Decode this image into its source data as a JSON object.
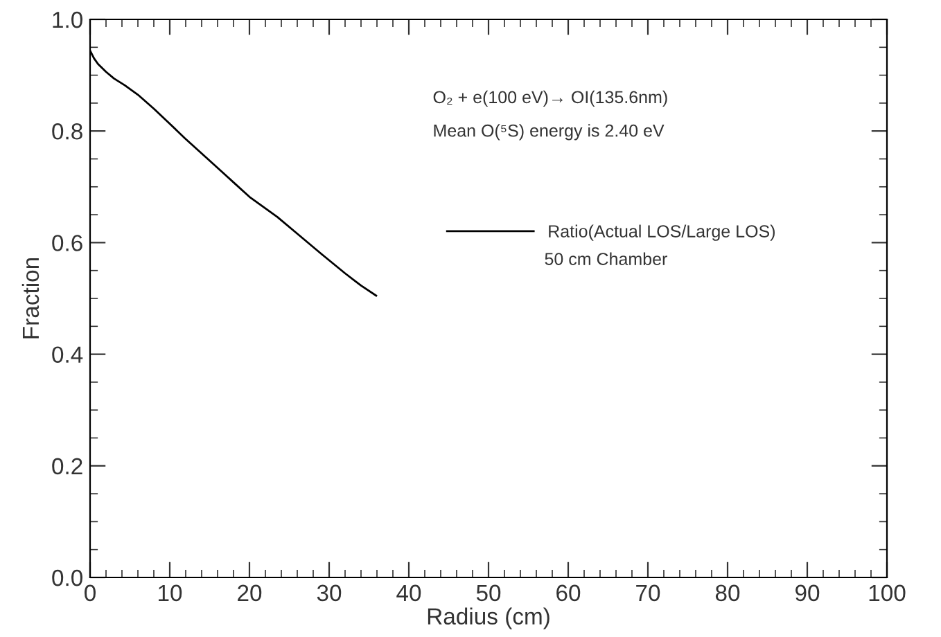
{
  "chart_data": {
    "type": "line",
    "xlabel": "Radius (cm)",
    "ylabel": "Fraction",
    "series": [
      {
        "name": "Ratio(Actual LOS/Large LOS)",
        "color": "#000000",
        "x": [
          0,
          0.5,
          1,
          2,
          3,
          4.35,
          6,
          8,
          10,
          11.9,
          15,
          18,
          20,
          23.5,
          26,
          29,
          32,
          34,
          35.9
        ],
        "values": [
          0.944,
          0.93,
          0.92,
          0.906,
          0.894,
          0.882,
          0.865,
          0.84,
          0.813,
          0.787,
          0.747,
          0.708,
          0.682,
          0.646,
          0.616,
          0.58,
          0.545,
          0.523,
          0.505
        ]
      }
    ],
    "annotations": [
      "O₂ + e(100 eV)→ OI(135.6nm)",
      "Mean O(⁵S) energy is 2.40 eV",
      "50 cm Chamber"
    ],
    "xlim": [
      0,
      100
    ],
    "ylim": [
      0,
      1.0
    ],
    "xticks": [
      0,
      10,
      20,
      30,
      40,
      50,
      60,
      70,
      80,
      90,
      100
    ],
    "yticks": [
      {
        "value": 0,
        "label": "0.0"
      },
      0.2,
      0.4,
      0.6,
      0.8,
      {
        "value": 1.0,
        "label": "1.0"
      }
    ],
    "legend": "top right",
    "line_style": "solid",
    "marker": "none",
    "grid": false
  }
}
